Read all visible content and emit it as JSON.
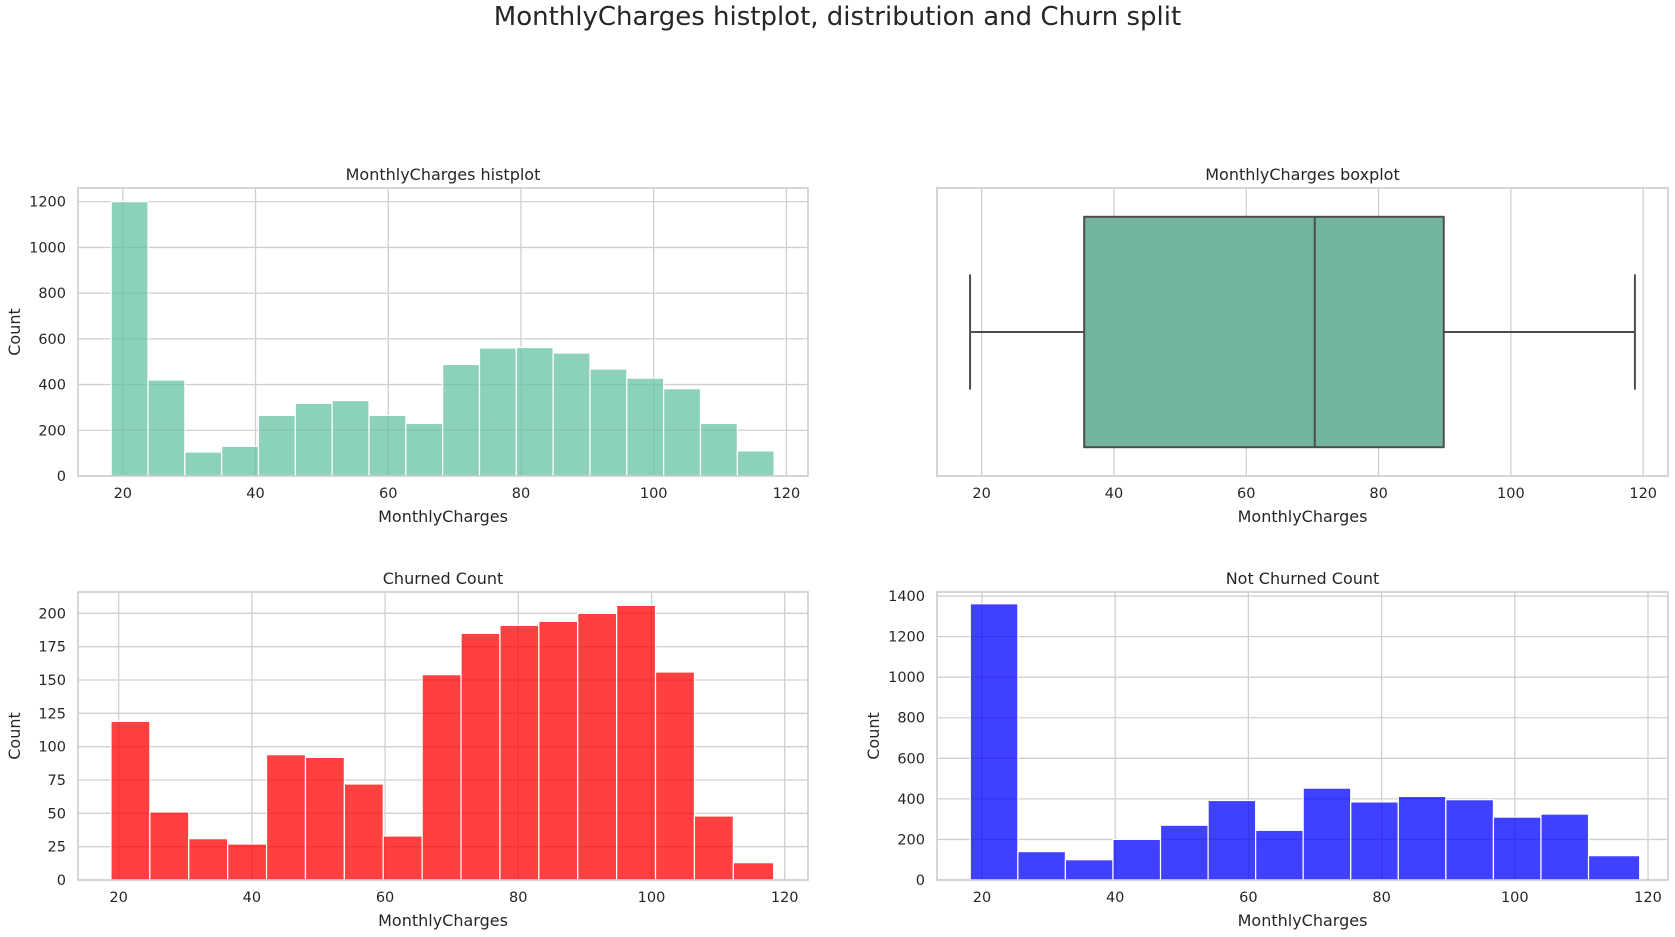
{
  "figure": {
    "suptitle": "MonthlyCharges histplot, distribution and Churn split"
  },
  "chart_data": [
    {
      "type": "bar",
      "subtype": "histogram",
      "title": "MonthlyCharges histplot",
      "xlabel": "MonthlyCharges",
      "ylabel": "Count",
      "xlim": [
        13.25,
        123.25
      ],
      "ylim": [
        0,
        1260
      ],
      "xticks": [
        20,
        40,
        60,
        80,
        100,
        120
      ],
      "yticks": [
        0,
        200,
        400,
        600,
        800,
        1000,
        1200
      ],
      "bin_edges": [
        18.25,
        23.8,
        29.35,
        34.9,
        40.45,
        46.0,
        51.55,
        57.1,
        62.65,
        68.2,
        73.75,
        79.3,
        84.85,
        90.4,
        95.95,
        101.5,
        107.05,
        112.6,
        118.15
      ],
      "values": [
        1200,
        420,
        105,
        130,
        265,
        318,
        330,
        265,
        230,
        488,
        560,
        562,
        538,
        468,
        428,
        382,
        230,
        110
      ],
      "color": "#66c2a5",
      "alpha": 0.75,
      "grid": true
    },
    {
      "type": "boxplot",
      "title": "MonthlyCharges boxplot",
      "xlabel": "MonthlyCharges",
      "xlim": [
        13.25,
        123.75
      ],
      "xticks": [
        20,
        40,
        60,
        80,
        100,
        120
      ],
      "whisker_low": 18.25,
      "q1": 35.5,
      "median": 70.35,
      "q3": 89.85,
      "whisker_high": 118.75,
      "color": "#66c2a5",
      "grid": true
    },
    {
      "type": "bar",
      "subtype": "histogram",
      "title": "Churned Count",
      "xlabel": "MonthlyCharges",
      "ylabel": "Count",
      "xlim": [
        13.9,
        123.5
      ],
      "ylim": [
        0,
        216
      ],
      "xticks": [
        20,
        40,
        60,
        80,
        100,
        120
      ],
      "yticks": [
        0,
        25,
        50,
        75,
        100,
        125,
        150,
        175,
        200
      ],
      "bin_edges": [
        18.85,
        24.69,
        30.53,
        36.37,
        42.21,
        48.05,
        53.89,
        59.73,
        65.57,
        71.41,
        77.25,
        83.09,
        88.93,
        94.77,
        100.61,
        106.45,
        112.29,
        118.35
      ],
      "values": [
        119,
        51,
        31,
        27,
        94,
        92,
        72,
        33,
        154,
        185,
        191,
        194,
        200,
        206,
        156,
        48,
        13
      ],
      "color": "#ff0000",
      "alpha": 0.75,
      "grid": true
    },
    {
      "type": "bar",
      "subtype": "histogram",
      "title": "Not Churned Count",
      "xlabel": "MonthlyCharges",
      "ylabel": "Count",
      "xlim": [
        13.25,
        123.0
      ],
      "ylim": [
        0,
        1420
      ],
      "xticks": [
        20,
        40,
        60,
        80,
        100,
        120
      ],
      "yticks": [
        0,
        200,
        400,
        600,
        800,
        1000,
        1200,
        1400
      ],
      "bin_edges": [
        18.25,
        25.39,
        32.53,
        39.67,
        46.81,
        53.95,
        61.09,
        68.23,
        75.37,
        82.51,
        89.65,
        96.79,
        103.93,
        111.07,
        118.75
      ],
      "values": [
        1362,
        140,
        100,
        200,
        270,
        392,
        245,
        453,
        385,
        412,
        396,
        310,
        325,
        120
      ],
      "color": "#0000ff",
      "alpha": 0.75,
      "grid": true
    }
  ]
}
